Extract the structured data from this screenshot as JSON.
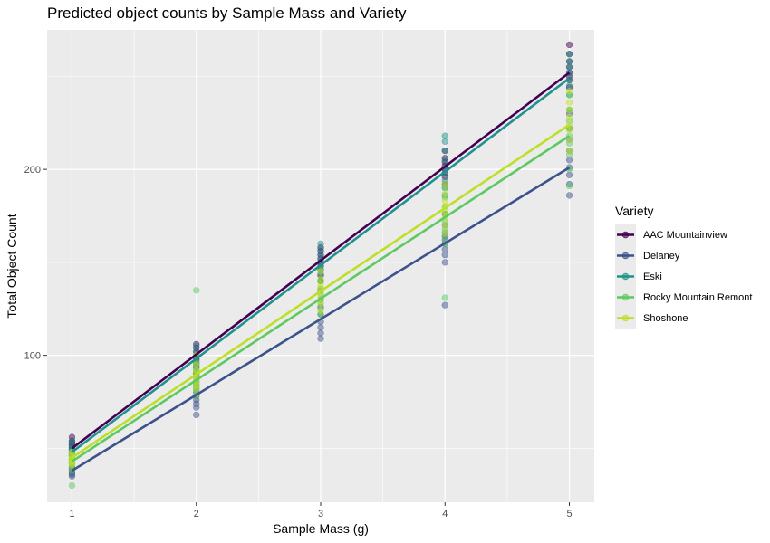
{
  "chart_data": {
    "type": "scatter",
    "title": "Predicted object counts by Sample Mass and Variety",
    "xlabel": "Sample Mass (g)",
    "ylabel": "Total Object Count",
    "xlim": [
      0.8,
      5.2
    ],
    "ylim": [
      21,
      275
    ],
    "x_ticks": [
      1,
      2,
      3,
      4,
      5
    ],
    "y_ticks": [
      100,
      200
    ],
    "grid": true,
    "legend_title": "Variety",
    "legend_position": "right",
    "series": [
      {
        "name": "AAC Mountainview",
        "color": "#440154",
        "line": [
          [
            1,
            50
          ],
          [
            5,
            252
          ]
        ],
        "points": [
          [
            1,
            56
          ],
          [
            1,
            54
          ],
          [
            1,
            53
          ],
          [
            1,
            52
          ],
          [
            1,
            51
          ],
          [
            1,
            50
          ],
          [
            1,
            49
          ],
          [
            1,
            48
          ],
          [
            1,
            46
          ],
          [
            2,
            106
          ],
          [
            2,
            104
          ],
          [
            2,
            102
          ],
          [
            2,
            100
          ],
          [
            2,
            99
          ],
          [
            2,
            98
          ],
          [
            2,
            96
          ],
          [
            2,
            94
          ],
          [
            2,
            90
          ],
          [
            3,
            158
          ],
          [
            3,
            156
          ],
          [
            3,
            154
          ],
          [
            3,
            152
          ],
          [
            3,
            150
          ],
          [
            3,
            148
          ],
          [
            3,
            146
          ],
          [
            3,
            143
          ],
          [
            3,
            140
          ],
          [
            4,
            210
          ],
          [
            4,
            206
          ],
          [
            4,
            204
          ],
          [
            4,
            202
          ],
          [
            4,
            200
          ],
          [
            4,
            198
          ],
          [
            4,
            196
          ],
          [
            4,
            192
          ],
          [
            5,
            267
          ],
          [
            5,
            262
          ],
          [
            5,
            258
          ],
          [
            5,
            255
          ],
          [
            5,
            252
          ],
          [
            5,
            250
          ],
          [
            5,
            248
          ],
          [
            5,
            244
          ]
        ]
      },
      {
        "name": "Delaney",
        "color": "#3b528b",
        "line": [
          [
            1,
            38
          ],
          [
            5,
            201
          ]
        ],
        "points": [
          [
            1,
            46
          ],
          [
            1,
            44
          ],
          [
            1,
            42
          ],
          [
            1,
            40
          ],
          [
            1,
            39
          ],
          [
            1,
            38
          ],
          [
            1,
            37
          ],
          [
            1,
            36
          ],
          [
            1,
            35
          ],
          [
            2,
            90
          ],
          [
            2,
            86
          ],
          [
            2,
            84
          ],
          [
            2,
            82
          ],
          [
            2,
            80
          ],
          [
            2,
            78
          ],
          [
            2,
            76
          ],
          [
            2,
            74
          ],
          [
            2,
            72
          ],
          [
            2,
            68
          ],
          [
            3,
            140
          ],
          [
            3,
            135
          ],
          [
            3,
            130
          ],
          [
            3,
            126
          ],
          [
            3,
            122
          ],
          [
            3,
            118
          ],
          [
            3,
            115
          ],
          [
            3,
            112
          ],
          [
            3,
            109
          ],
          [
            4,
            176
          ],
          [
            4,
            170
          ],
          [
            4,
            166
          ],
          [
            4,
            164
          ],
          [
            4,
            162
          ],
          [
            4,
            160
          ],
          [
            4,
            157
          ],
          [
            4,
            154
          ],
          [
            4,
            150
          ],
          [
            4,
            127
          ],
          [
            5,
            230
          ],
          [
            5,
            222
          ],
          [
            5,
            216
          ],
          [
            5,
            210
          ],
          [
            5,
            205
          ],
          [
            5,
            201
          ],
          [
            5,
            197
          ],
          [
            5,
            192
          ],
          [
            5,
            186
          ]
        ]
      },
      {
        "name": "Eski",
        "color": "#21918c",
        "line": [
          [
            1,
            48
          ],
          [
            5,
            249
          ]
        ],
        "points": [
          [
            1,
            54
          ],
          [
            1,
            52
          ],
          [
            1,
            50
          ],
          [
            1,
            49
          ],
          [
            1,
            48
          ],
          [
            1,
            47
          ],
          [
            1,
            46
          ],
          [
            1,
            44
          ],
          [
            2,
            105
          ],
          [
            2,
            102
          ],
          [
            2,
            100
          ],
          [
            2,
            98
          ],
          [
            2,
            97
          ],
          [
            2,
            95
          ],
          [
            2,
            93
          ],
          [
            2,
            91
          ],
          [
            3,
            160
          ],
          [
            3,
            157
          ],
          [
            3,
            154
          ],
          [
            3,
            151
          ],
          [
            3,
            149
          ],
          [
            3,
            146
          ],
          [
            3,
            144
          ],
          [
            3,
            140
          ],
          [
            4,
            218
          ],
          [
            4,
            215
          ],
          [
            4,
            210
          ],
          [
            4,
            205
          ],
          [
            4,
            201
          ],
          [
            4,
            198
          ],
          [
            4,
            194
          ],
          [
            4,
            190
          ],
          [
            4,
            186
          ],
          [
            5,
            262
          ],
          [
            5,
            258
          ],
          [
            5,
            255
          ],
          [
            5,
            252
          ],
          [
            5,
            248
          ],
          [
            5,
            245
          ],
          [
            5,
            240
          ],
          [
            5,
            232
          ]
        ]
      },
      {
        "name": "Rocky Mountain Remont",
        "color": "#5ec962",
        "line": [
          [
            1,
            43
          ],
          [
            5,
            218
          ]
        ],
        "points": [
          [
            1,
            48
          ],
          [
            1,
            46
          ],
          [
            1,
            44
          ],
          [
            1,
            43
          ],
          [
            1,
            42
          ],
          [
            1,
            40
          ],
          [
            1,
            38
          ],
          [
            1,
            30
          ],
          [
            2,
            135
          ],
          [
            2,
            96
          ],
          [
            2,
            92
          ],
          [
            2,
            89
          ],
          [
            2,
            87
          ],
          [
            2,
            85
          ],
          [
            2,
            83
          ],
          [
            2,
            81
          ],
          [
            2,
            78
          ],
          [
            3,
            146
          ],
          [
            3,
            140
          ],
          [
            3,
            136
          ],
          [
            3,
            133
          ],
          [
            3,
            130
          ],
          [
            3,
            128
          ],
          [
            3,
            125
          ],
          [
            3,
            122
          ],
          [
            4,
            190
          ],
          [
            4,
            185
          ],
          [
            4,
            180
          ],
          [
            4,
            176
          ],
          [
            4,
            172
          ],
          [
            4,
            168
          ],
          [
            4,
            164
          ],
          [
            4,
            160
          ],
          [
            4,
            131
          ],
          [
            5,
            240
          ],
          [
            5,
            232
          ],
          [
            5,
            226
          ],
          [
            5,
            222
          ],
          [
            5,
            218
          ],
          [
            5,
            214
          ],
          [
            5,
            208
          ],
          [
            5,
            200
          ],
          [
            5,
            191
          ]
        ]
      },
      {
        "name": "Shoshone",
        "color": "#bddf26",
        "line": [
          [
            1,
            45
          ],
          [
            5,
            224
          ]
        ],
        "points": [
          [
            1,
            48
          ],
          [
            1,
            46
          ],
          [
            1,
            45
          ],
          [
            1,
            44
          ],
          [
            1,
            43
          ],
          [
            1,
            42
          ],
          [
            1,
            41
          ],
          [
            2,
            100
          ],
          [
            2,
            95
          ],
          [
            2,
            92
          ],
          [
            2,
            90
          ],
          [
            2,
            88
          ],
          [
            2,
            86
          ],
          [
            2,
            84
          ],
          [
            2,
            82
          ],
          [
            3,
            145
          ],
          [
            3,
            141
          ],
          [
            3,
            138
          ],
          [
            3,
            136
          ],
          [
            3,
            134
          ],
          [
            3,
            131
          ],
          [
            3,
            128
          ],
          [
            3,
            124
          ],
          [
            4,
            192
          ],
          [
            4,
            187
          ],
          [
            4,
            183
          ],
          [
            4,
            180
          ],
          [
            4,
            177
          ],
          [
            4,
            174
          ],
          [
            4,
            170
          ],
          [
            4,
            166
          ],
          [
            5,
            242
          ],
          [
            5,
            236
          ],
          [
            5,
            232
          ],
          [
            5,
            228
          ],
          [
            5,
            224
          ],
          [
            5,
            221
          ],
          [
            5,
            216
          ],
          [
            5,
            210
          ]
        ]
      }
    ]
  }
}
